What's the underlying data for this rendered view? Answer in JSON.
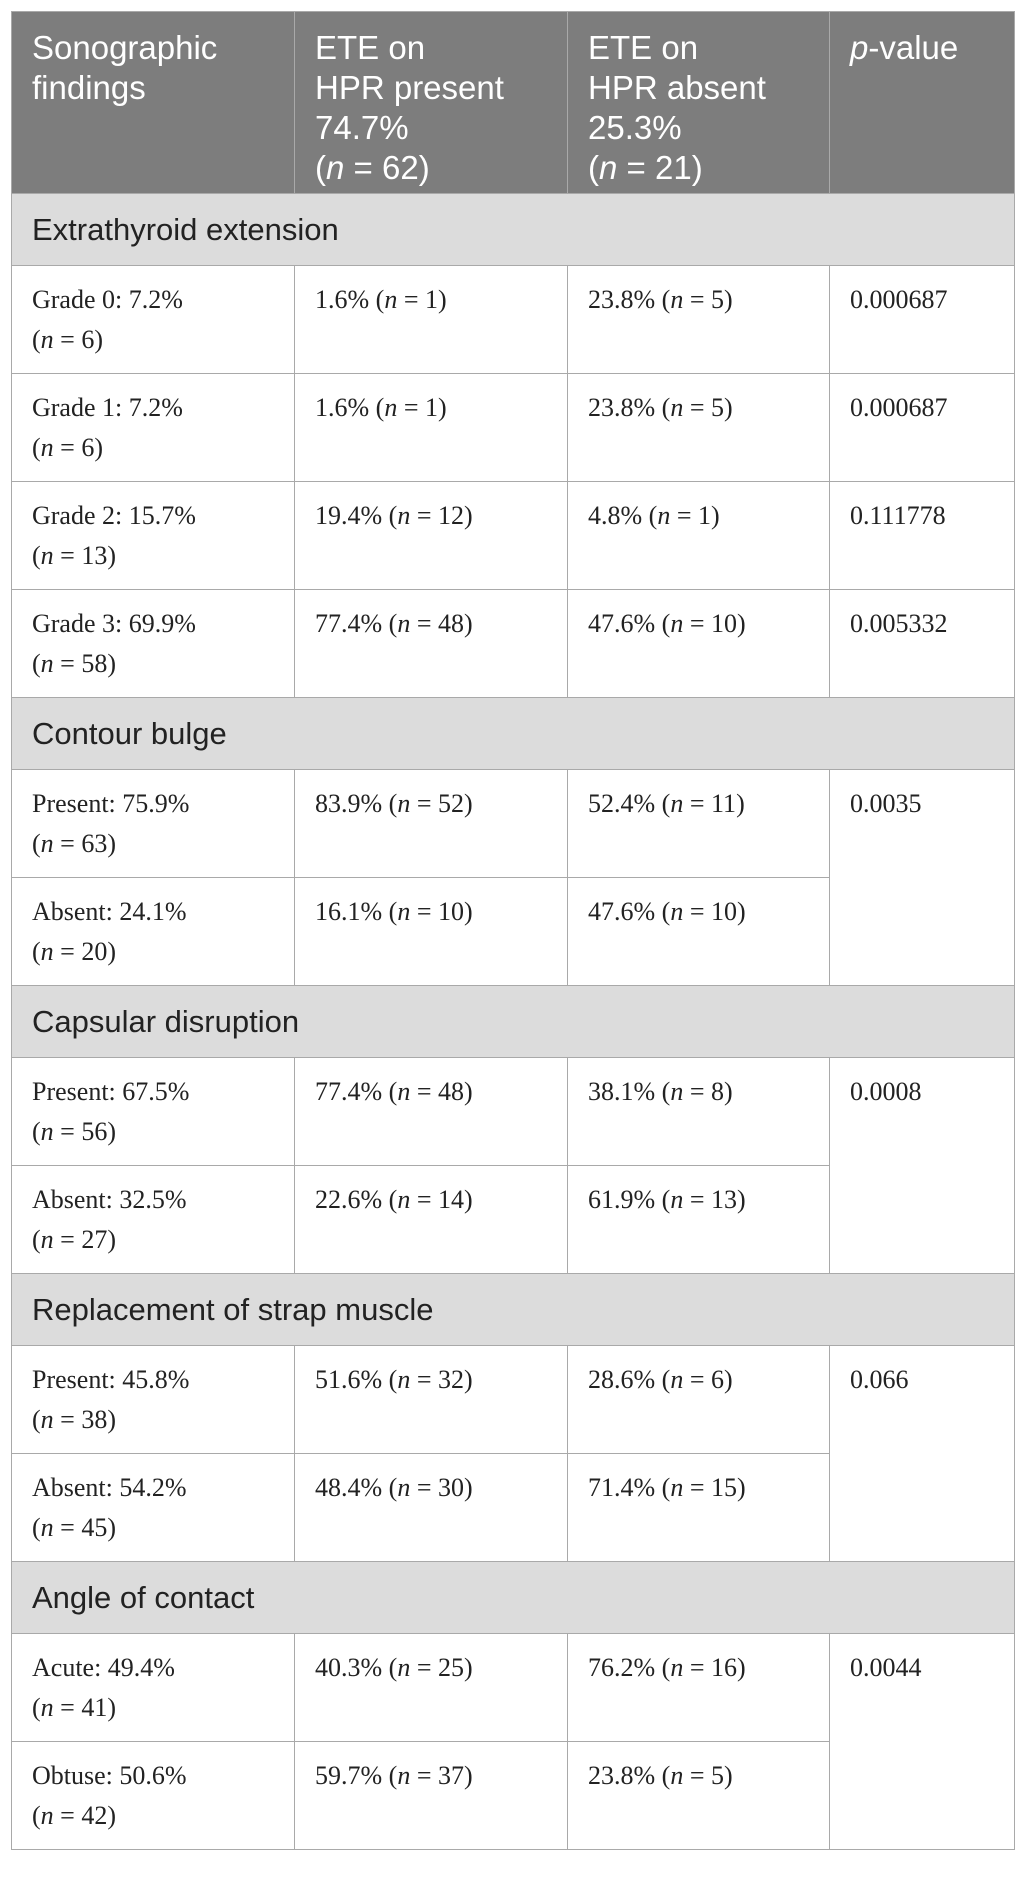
{
  "header": {
    "col1_line1": "Sonographic",
    "col1_line2": "findings",
    "col2_line1": "ETE on",
    "col2_line2": "HPR present",
    "col2_line3": "74.7%",
    "col2_n": "62",
    "col3_line1": "ETE on",
    "col3_line2": "HPR absent",
    "col3_line3": "25.3%",
    "col3_n": "21",
    "col4_p": "p",
    "col4_rest": "-value"
  },
  "sections": [
    {
      "title": "Extrathyroid extension",
      "rows": [
        {
          "label": "Grade 0: 7.2%",
          "label_n": "6",
          "present_pct": "1.6%",
          "present_n": "1",
          "absent_pct": "23.8%",
          "absent_n": "5",
          "p": "0.000687"
        },
        {
          "label": "Grade 1: 7.2%",
          "label_n": "6",
          "present_pct": "1.6%",
          "present_n": "1",
          "absent_pct": "23.8%",
          "absent_n": "5",
          "p": "0.000687"
        },
        {
          "label": "Grade 2: 15.7%",
          "label_n": "13",
          "present_pct": "19.4%",
          "present_n": "12",
          "absent_pct": "4.8%",
          "absent_n": "1",
          "p": "0.111778"
        },
        {
          "label": "Grade 3: 69.9%",
          "label_n": "58",
          "present_pct": "77.4%",
          "present_n": "48",
          "absent_pct": "47.6%",
          "absent_n": "10",
          "p": "0.005332"
        }
      ]
    },
    {
      "title": "Contour bulge",
      "p": "0.0035",
      "rows": [
        {
          "label": "Present: 75.9%",
          "label_n": "63",
          "present_pct": "83.9%",
          "present_n": "52",
          "absent_pct": "52.4%",
          "absent_n": "11"
        },
        {
          "label": "Absent: 24.1%",
          "label_n": "20",
          "present_pct": "16.1%",
          "present_n": "10",
          "absent_pct": "47.6%",
          "absent_n": "10"
        }
      ]
    },
    {
      "title": "Capsular disruption",
      "p": "0.0008",
      "rows": [
        {
          "label": "Present: 67.5%",
          "label_n": "56",
          "present_pct": "77.4%",
          "present_n": "48",
          "absent_pct": "38.1%",
          "absent_n": "8"
        },
        {
          "label": "Absent: 32.5%",
          "label_n": "27",
          "present_pct": "22.6%",
          "present_n": "14",
          "absent_pct": "61.9%",
          "absent_n": "13"
        }
      ]
    },
    {
      "title": "Replacement of strap muscle",
      "p": "0.066",
      "rows": [
        {
          "label": "Present: 45.8%",
          "label_n": "38",
          "present_pct": "51.6%",
          "present_n": "32",
          "absent_pct": "28.6%",
          "absent_n": "6"
        },
        {
          "label": "Absent: 54.2%",
          "label_n": "45",
          "present_pct": "48.4%",
          "present_n": "30",
          "absent_pct": "71.4%",
          "absent_n": "15"
        }
      ]
    },
    {
      "title": "Angle of contact",
      "p": "0.0044",
      "rows": [
        {
          "label": "Acute: 49.4%",
          "label_n": "41",
          "present_pct": "40.3%",
          "present_n": "25",
          "absent_pct": "76.2%",
          "absent_n": "16"
        },
        {
          "label": "Obtuse: 50.6%",
          "label_n": "42",
          "present_pct": "59.7%",
          "present_n": "37",
          "absent_pct": "23.8%",
          "absent_n": "5"
        }
      ]
    }
  ]
}
